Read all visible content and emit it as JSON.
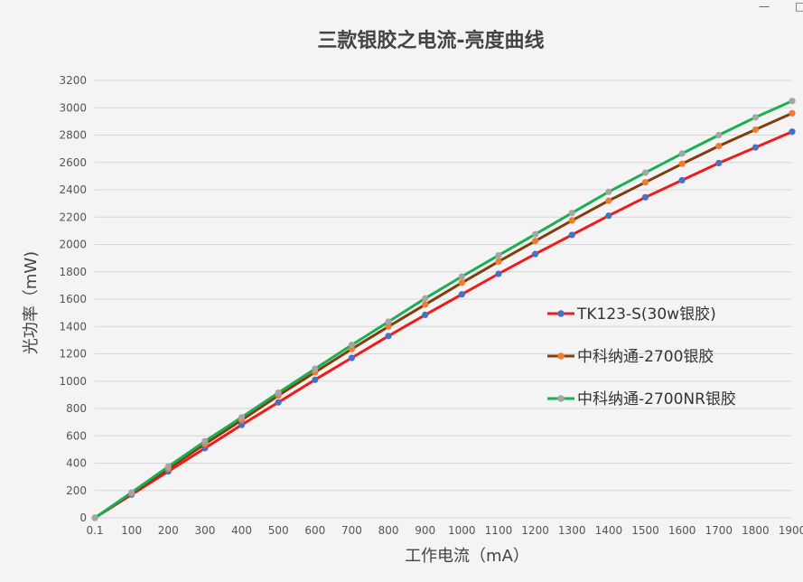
{
  "window": {
    "minimize_glyph": "—",
    "restore_glyph": "□"
  },
  "chart_data": {
    "type": "line",
    "title": "三款银胶之电流-亮度曲线",
    "xlabel": "工作电流（mA）",
    "ylabel": "光功率（mW)",
    "categories": [
      "0.1",
      "100",
      "200",
      "300",
      "400",
      "500",
      "600",
      "700",
      "800",
      "900",
      "1000",
      "1100",
      "1200",
      "1300",
      "1400",
      "1500",
      "1600",
      "1700",
      "1800",
      "1900"
    ],
    "ylim": [
      0,
      3200
    ],
    "y_ticks": [
      "0",
      "200",
      "400",
      "600",
      "800",
      "1000",
      "1200",
      "1400",
      "1600",
      "1800",
      "2000",
      "2200",
      "2400",
      "2600",
      "2800",
      "3000",
      "3200"
    ],
    "grid": true,
    "legend_position": "right",
    "series": [
      {
        "name": "TK123-S(30w银胶)",
        "line_color": "#ee1c1c",
        "marker_color": "#4472c4",
        "values": [
          0,
          170,
          340,
          510,
          680,
          845,
          1010,
          1170,
          1330,
          1485,
          1635,
          1785,
          1930,
          2070,
          2210,
          2345,
          2470,
          2595,
          2710,
          2825
        ]
      },
      {
        "name": "中科纳通-2700银胶",
        "line_color": "#843c0c",
        "marker_color": "#ed7d31",
        "values": [
          0,
          178,
          360,
          540,
          715,
          895,
          1065,
          1235,
          1400,
          1560,
          1720,
          1875,
          2025,
          2175,
          2320,
          2455,
          2590,
          2720,
          2840,
          2960
        ]
      },
      {
        "name": "中科纳通-2700NR银胶",
        "line_color": "#1aaf54",
        "marker_color": "#a5a5a5",
        "values": [
          0,
          185,
          375,
          560,
          735,
          915,
          1090,
          1265,
          1435,
          1605,
          1765,
          1920,
          2075,
          2230,
          2385,
          2525,
          2665,
          2800,
          2930,
          3050
        ]
      }
    ]
  }
}
